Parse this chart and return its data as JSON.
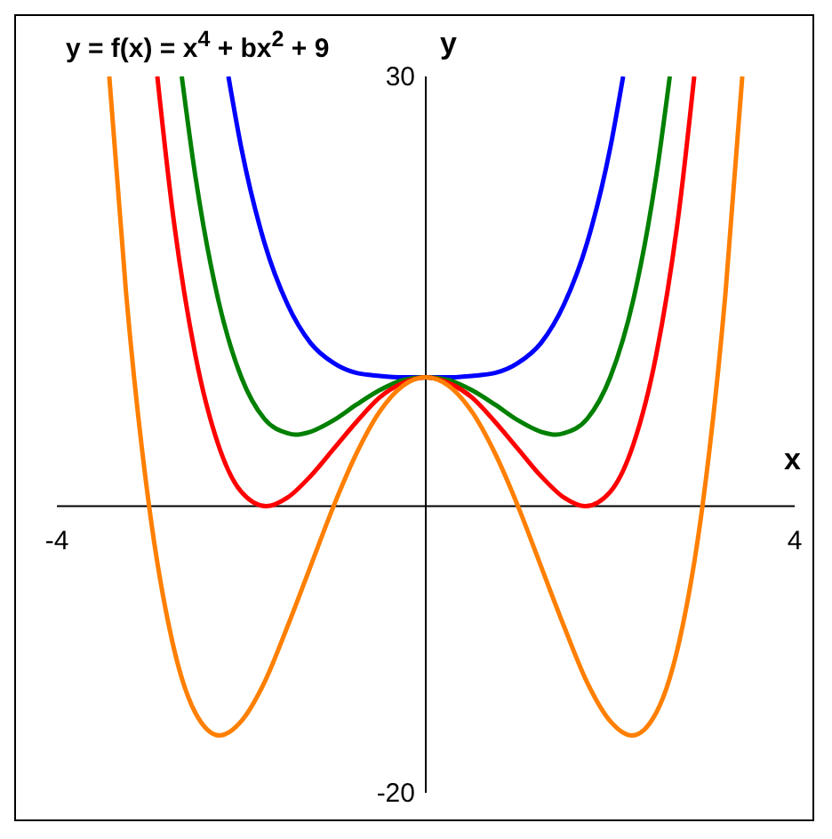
{
  "chart_data": {
    "type": "line",
    "title": "y = f(x) = x$^{4}$ + bx$^{2}$ + 9",
    "xlabel": "x",
    "ylabel": "y",
    "xlim": [
      -4,
      4
    ],
    "ylim": [
      -20,
      30
    ],
    "xticks": [
      -4,
      4
    ],
    "yticks": [
      -20,
      30
    ],
    "marker": "none",
    "line_style": "solid",
    "series": [
      {
        "color": "#0000ff",
        "x": [
          -2.14,
          -2,
          -1.75,
          -1.5,
          -1.25,
          -1,
          -0.75,
          -0.5,
          -0.25,
          0,
          0.25,
          0.5,
          0.75,
          1,
          1.25,
          1.5,
          1.75,
          2,
          2.14
        ],
        "values": [
          30,
          25,
          18.4,
          14.1,
          11.4,
          10,
          9.3,
          9.1,
          9,
          9,
          9,
          9.1,
          9.3,
          10,
          11.4,
          14.1,
          18.4,
          25,
          30
        ]
      },
      {
        "color": "#008000",
        "x": [
          -2.646,
          -2.5,
          -2.25,
          -2,
          -1.75,
          -1.5,
          -1.414,
          -1.25,
          -1,
          -0.75,
          -0.5,
          -0.25,
          0,
          0.25,
          0.5,
          0.75,
          1,
          1.25,
          1.414,
          1.5,
          1.75,
          2,
          2.25,
          2.5,
          2.646
        ],
        "values": [
          30,
          23.1,
          14.4,
          9,
          6.1,
          5.1,
          5,
          5.2,
          6,
          7.1,
          8.1,
          8.8,
          9,
          8.8,
          8.1,
          7.1,
          6,
          5.2,
          5,
          5.1,
          6.1,
          9,
          14.4,
          23.1,
          30
        ]
      },
      {
        "color": "#ff0000",
        "x": [
          -2.911,
          -2.75,
          -2.5,
          -2.25,
          -2,
          -1.732,
          -1.5,
          -1.25,
          -1,
          -0.75,
          -0.5,
          -0.25,
          0,
          0.25,
          0.5,
          0.75,
          1,
          1.25,
          1.5,
          1.732,
          2,
          2.25,
          2.5,
          2.75,
          2.911
        ],
        "values": [
          30,
          20.8,
          10.6,
          4.3,
          1,
          0,
          0.6,
          2.1,
          4,
          5.9,
          7.6,
          8.6,
          9,
          8.6,
          7.6,
          5.9,
          4,
          2.1,
          0.6,
          0,
          1,
          4.3,
          10.6,
          20.8,
          30
        ]
      },
      {
        "color": "#ff7f00",
        "x": [
          -3.432,
          -3.25,
          -3,
          -2.75,
          -2.5,
          -2.236,
          -2,
          -1.75,
          -1.5,
          -1.25,
          -1,
          -0.75,
          -0.5,
          -0.25,
          0,
          0.25,
          0.5,
          0.75,
          1,
          1.25,
          1.5,
          1.75,
          2,
          2.236,
          2.5,
          2.75,
          3,
          3.25,
          3.432
        ],
        "values": [
          30,
          14.9,
          0,
          -9.4,
          -14.4,
          -16,
          -15,
          -12.3,
          -8.4,
          -4.2,
          0,
          3.7,
          6.6,
          8.4,
          9,
          8.4,
          6.6,
          3.7,
          0,
          -4.2,
          -8.4,
          -12.3,
          -15,
          -16,
          -14.4,
          -9.4,
          0,
          14.9,
          30
        ]
      }
    ]
  }
}
